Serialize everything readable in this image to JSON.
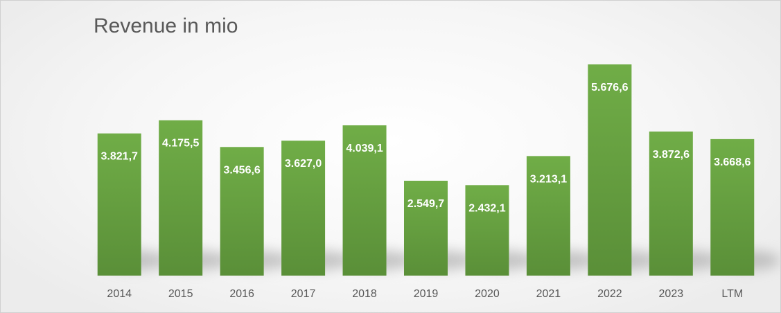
{
  "chart_data": {
    "type": "bar",
    "title": "Revenue in mio",
    "categories": [
      "2014",
      "2015",
      "2016",
      "2017",
      "2018",
      "2019",
      "2020",
      "2021",
      "2022",
      "2023",
      "LTM"
    ],
    "values": [
      3821.7,
      4175.5,
      3456.6,
      3627.0,
      4039.1,
      2549.7,
      2432.1,
      3213.1,
      5676.6,
      3872.6,
      3668.6
    ],
    "data_labels": [
      "3.821,7",
      "4.175,5",
      "3.456,6",
      "3.627,0",
      "4.039,1",
      "2.549,7",
      "2.432,1",
      "3.213,1",
      "5.676,6",
      "3.872,6",
      "3.668,6"
    ],
    "xlabel": "",
    "ylabel": "",
    "ylim": [
      0,
      6000
    ],
    "grid": false,
    "legend": "none",
    "bar_color_top": "#70ad47",
    "bar_color_bottom": "#5a8f38"
  }
}
